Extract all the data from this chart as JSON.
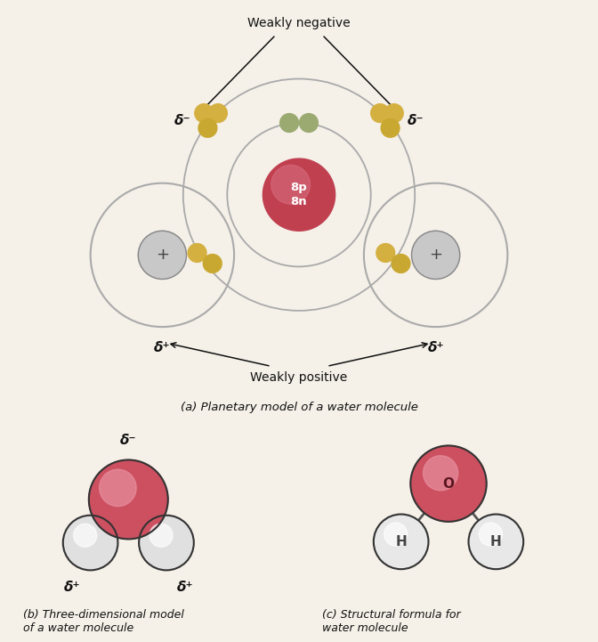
{
  "bg_color": "#f5f0e8",
  "oxygen_nucleus_color": "#c04050",
  "oxygen_nucleus_color2": "#d87080",
  "hydrogen_nucleus_color": "#c8c8c8",
  "electron_yellow": "#d4b040",
  "electron_green": "#8a9840",
  "electron_yellow2": "#c8a830",
  "orbit_color": "#aaaaaa",
  "label_color": "#111111",
  "subtitle_a": "(a) Planetary model of a water molecule",
  "subtitle_b": "(b) Three-dimensional model\nof a water molecule",
  "subtitle_c": "(c) Structural formula for\nwater molecule",
  "weakly_negative": "Weakly negative",
  "weakly_positive": "Weakly positive",
  "delta_minus": "δ⁻",
  "delta_plus": "δ⁺",
  "bond_color": "#555555"
}
